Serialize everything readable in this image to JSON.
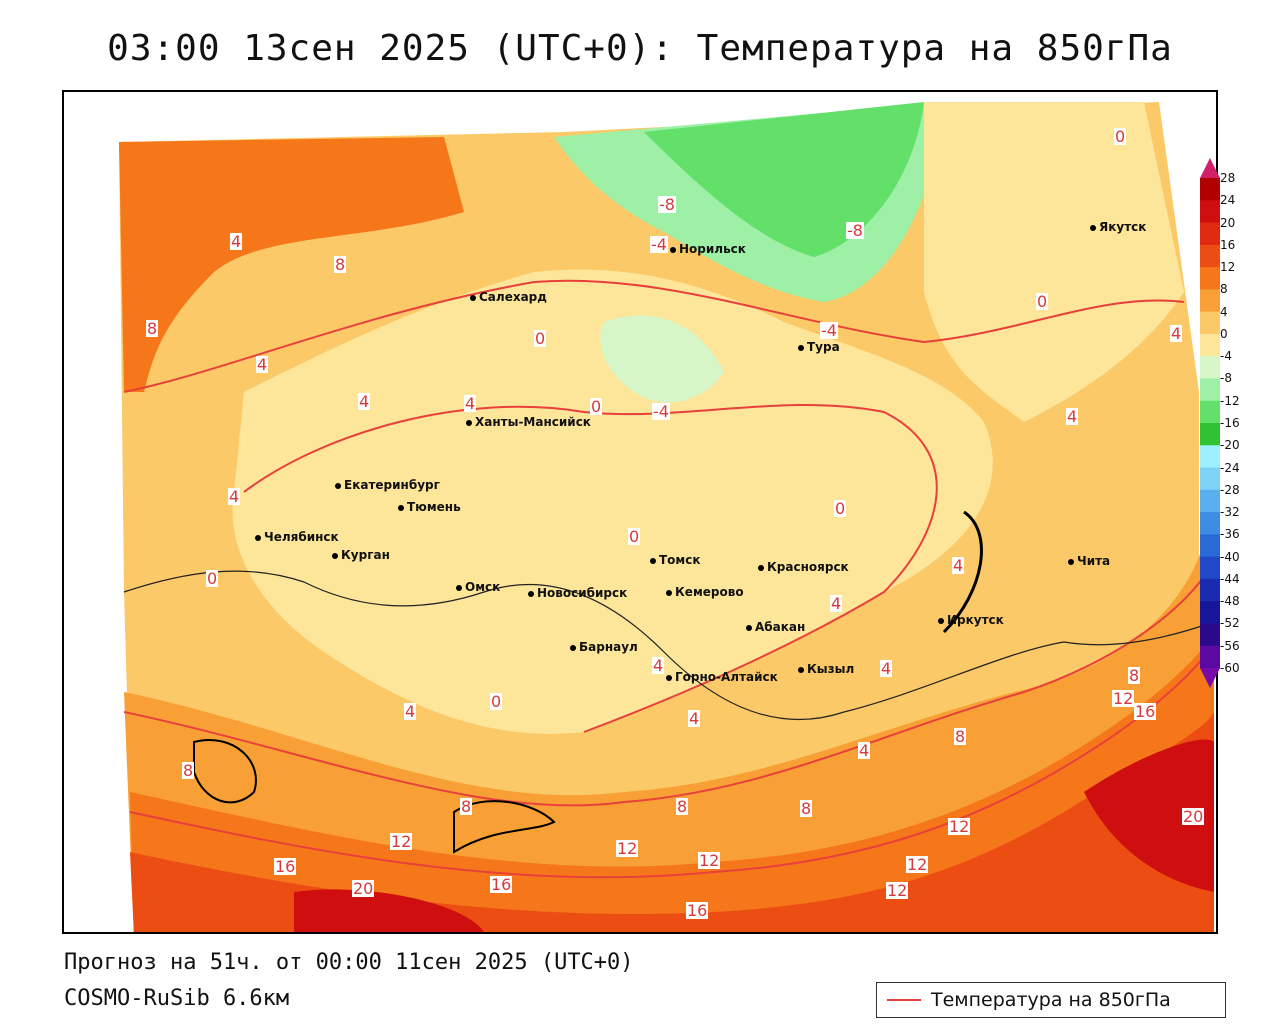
{
  "title": "03:00 13сен 2025 (UTC+0): Температура на 850гПа",
  "forecast_line": "Прогноз на 51ч. от 00:00 11сен 2025 (UTC+0)",
  "model_line": "COSMO-RuSib 6.6км",
  "legend_label": "Температура на 850гПа",
  "colorbar": {
    "labels": [
      "28",
      "24",
      "20",
      "16",
      "12",
      "8",
      "4",
      "0",
      "-4",
      "-8",
      "-12",
      "-16",
      "-20",
      "-24",
      "-28",
      "-32",
      "-36",
      "-40",
      "-44",
      "-48",
      "-52",
      "-56",
      "-60"
    ],
    "colors": [
      "#b00000",
      "#cf0f0f",
      "#e02a10",
      "#ec4d12",
      "#f5771a",
      "#f8a035",
      "#fbc967",
      "#fde59a",
      "#d6f6c8",
      "#9ef0a6",
      "#62e06a",
      "#2fc232",
      "#9ff0ff",
      "#7dd2f6",
      "#5ab0ee",
      "#3e8de2",
      "#2a6ad6",
      "#2148c6",
      "#1a2bb0",
      "#18169a",
      "#2a0a8a",
      "#5a0aa0"
    ]
  },
  "cities": [
    {
      "name": "Норильск"
    },
    {
      "name": "Якутск"
    },
    {
      "name": "Салехард"
    },
    {
      "name": "Тура"
    },
    {
      "name": "Ханты-Мансийск"
    },
    {
      "name": "Екатеринбург"
    },
    {
      "name": "Тюмень"
    },
    {
      "name": "Челябинск"
    },
    {
      "name": "Курган"
    },
    {
      "name": "Омск"
    },
    {
      "name": "Томск"
    },
    {
      "name": "Новосибирск"
    },
    {
      "name": "Кемерово"
    },
    {
      "name": "Красноярск"
    },
    {
      "name": "Барнаул"
    },
    {
      "name": "Абакан"
    },
    {
      "name": "Горно-Алтайск"
    },
    {
      "name": "Кызыл"
    },
    {
      "name": "Иркутск"
    },
    {
      "name": "Чита"
    }
  ],
  "contour_labels": [
    "-8",
    "-8",
    "-4",
    "-4",
    "-4",
    "0",
    "0",
    "0",
    "0",
    "0",
    "0",
    "0",
    "0",
    "4",
    "4",
    "4",
    "4",
    "4",
    "4",
    "4",
    "4",
    "4",
    "4",
    "4",
    "4",
    "4",
    "4",
    "8",
    "8",
    "8",
    "8",
    "8",
    "8",
    "8",
    "8",
    "12",
    "12",
    "12",
    "12",
    "12",
    "12",
    "12",
    "16",
    "16",
    "16",
    "16",
    "20",
    "20"
  ]
}
